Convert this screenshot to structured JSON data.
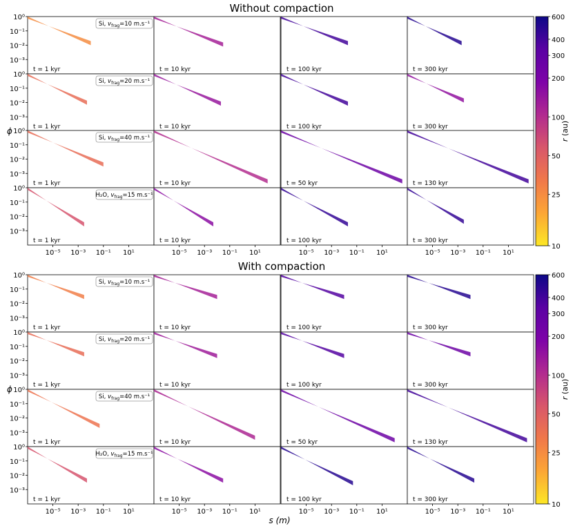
{
  "figure": {
    "colorbar": {
      "label": "r (au)",
      "label_var": "r",
      "label_unit": " (au)",
      "ticks": [
        "600",
        "400",
        "300",
        "200",
        "100",
        "50",
        "25",
        "10"
      ],
      "tick_values": [
        600,
        400,
        300,
        200,
        100,
        50,
        25,
        10
      ],
      "range": [
        10,
        600
      ],
      "scale": "log",
      "colormap": [
        "#fde725",
        "#fca636",
        "#f0784a",
        "#d8576b",
        "#b12a90",
        "#7e03a8",
        "#5a02a3",
        "#0d0887"
      ]
    }
  },
  "chart_data": [
    {
      "type": "scatter",
      "title": "Without compaction",
      "xlabel": "s (m)",
      "ylabel": "ϕ",
      "xscale": "log",
      "yscale": "log",
      "xlim": [
        1e-07,
        1000.0
      ],
      "ylim": [
        0.0001,
        1
      ],
      "x_ticks": [
        "10⁻⁵",
        "10⁻³",
        "10⁻¹",
        "10¹"
      ],
      "y_ticks": [
        "10⁰",
        "10⁻¹",
        "10⁻²",
        "10⁻³"
      ],
      "rows": [
        {
          "label_species": "Si",
          "label_value": "10",
          "label_unit": " m.s⁻¹",
          "panels": [
            {
              "time": "t = 1 kyr",
              "s_max": 0.01,
              "phi_min": 0.01,
              "r_au": 25
            },
            {
              "time": "t = 10 kyr",
              "s_max": 0.03,
              "phi_min": 0.008,
              "r_au": 120
            },
            {
              "time": "t = 100 kyr",
              "s_max": 0.02,
              "phi_min": 0.01,
              "r_au": 400
            },
            {
              "time": "t = 300 kyr",
              "s_max": 0.002,
              "phi_min": 0.01,
              "r_au": 500
            }
          ]
        },
        {
          "label_species": "Si",
          "label_value": "20",
          "label_unit": " m.s⁻¹",
          "panels": [
            {
              "time": "t = 1 kyr",
              "s_max": 0.005,
              "phi_min": 0.007,
              "r_au": 40
            },
            {
              "time": "t = 10 kyr",
              "s_max": 0.02,
              "phi_min": 0.006,
              "r_au": 140
            },
            {
              "time": "t = 100 kyr",
              "s_max": 0.02,
              "phi_min": 0.006,
              "r_au": 400
            },
            {
              "time": "t = 300 kyr",
              "s_max": 0.003,
              "phi_min": 0.01,
              "r_au": 150
            }
          ]
        },
        {
          "label_species": "Si",
          "label_value": "40",
          "label_unit": " m.s⁻¹",
          "panels": [
            {
              "time": "t = 1 kyr",
              "s_max": 0.1,
              "phi_min": 0.003,
              "r_au": 40
            },
            {
              "time": "t = 10 kyr",
              "s_max": 100,
              "phi_min": 0.0002,
              "r_au": 100
            },
            {
              "time": "t = 50 kyr",
              "s_max": 400,
              "phi_min": 0.0002,
              "r_au": 250
            },
            {
              "time": "t = 130 kyr",
              "s_max": 400,
              "phi_min": 0.0002,
              "r_au": 400
            }
          ]
        },
        {
          "label_species": "H₂O",
          "label_value": "15",
          "label_unit": " m.s⁻¹",
          "panels": [
            {
              "time": "t = 1 kyr",
              "s_max": 0.003,
              "phi_min": 0.002,
              "r_au": 60
            },
            {
              "time": "t = 10 kyr",
              "s_max": 0.005,
              "phi_min": 0.002,
              "r_au": 160
            },
            {
              "time": "t = 100 kyr",
              "s_max": 0.02,
              "phi_min": 0.002,
              "r_au": 450
            },
            {
              "time": "t = 300 kyr",
              "s_max": 0.003,
              "phi_min": 0.003,
              "r_au": 450
            }
          ]
        }
      ]
    },
    {
      "type": "scatter",
      "title": "With compaction",
      "xlabel": "s (m)",
      "ylabel": "ϕ",
      "xscale": "log",
      "yscale": "log",
      "xlim": [
        1e-07,
        1000.0
      ],
      "ylim": [
        0.0001,
        1
      ],
      "x_ticks": [
        "10⁻⁵",
        "10⁻³",
        "10⁻¹",
        "10¹"
      ],
      "y_ticks": [
        "10⁰",
        "10⁻¹",
        "10⁻²",
        "10⁻³"
      ],
      "rows": [
        {
          "label_species": "Si",
          "label_value": "10",
          "label_unit": " m.s⁻¹",
          "panels": [
            {
              "time": "t = 1 kyr",
              "s_max": 0.003,
              "phi_min": 0.02,
              "r_au": 30
            },
            {
              "time": "t = 10 kyr",
              "s_max": 0.01,
              "phi_min": 0.02,
              "r_au": 120
            },
            {
              "time": "t = 100 kyr",
              "s_max": 0.01,
              "phi_min": 0.02,
              "r_au": 350
            },
            {
              "time": "t = 300 kyr",
              "s_max": 0.01,
              "phi_min": 0.02,
              "r_au": 500
            }
          ]
        },
        {
          "label_species": "Si",
          "label_value": "20",
          "label_unit": " m.s⁻¹",
          "panels": [
            {
              "time": "t = 1 kyr",
              "s_max": 0.003,
              "phi_min": 0.02,
              "r_au": 40
            },
            {
              "time": "t = 10 kyr",
              "s_max": 0.01,
              "phi_min": 0.015,
              "r_au": 130
            },
            {
              "time": "t = 100 kyr",
              "s_max": 0.01,
              "phi_min": 0.015,
              "r_au": 350
            },
            {
              "time": "t = 300 kyr",
              "s_max": 0.01,
              "phi_min": 0.02,
              "r_au": 250
            }
          ]
        },
        {
          "label_species": "Si",
          "label_value": "40",
          "label_unit": " m.s⁻¹",
          "panels": [
            {
              "time": "t = 1 kyr",
              "s_max": 0.05,
              "phi_min": 0.002,
              "r_au": 35
            },
            {
              "time": "t = 10 kyr",
              "s_max": 10,
              "phi_min": 0.0003,
              "r_au": 110
            },
            {
              "time": "t = 50 kyr",
              "s_max": 100,
              "phi_min": 0.0002,
              "r_au": 250
            },
            {
              "time": "t = 130 kyr",
              "s_max": 300,
              "phi_min": 0.0002,
              "r_au": 400
            }
          ]
        },
        {
          "label_species": "H₂O",
          "label_value": "15",
          "label_unit": " m.s⁻¹",
          "panels": [
            {
              "time": "t = 1 kyr",
              "s_max": 0.005,
              "phi_min": 0.003,
              "r_au": 60
            },
            {
              "time": "t = 10 kyr",
              "s_max": 0.03,
              "phi_min": 0.003,
              "r_au": 160
            },
            {
              "time": "t = 100 kyr",
              "s_max": 0.05,
              "phi_min": 0.002,
              "r_au": 500
            },
            {
              "time": "t = 300 kyr",
              "s_max": 0.02,
              "phi_min": 0.003,
              "r_au": 500
            }
          ]
        }
      ]
    }
  ]
}
